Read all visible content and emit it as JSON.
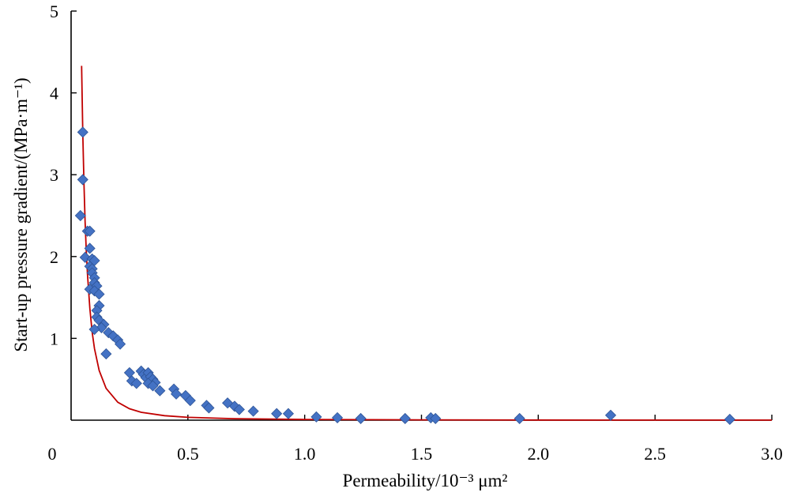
{
  "chart_data": {
    "type": "scatter",
    "title": "",
    "xlabel": "Permeability/10⁻³ μm²",
    "ylabel": "Start-up pressure gradient/(MPa·m⁻¹)",
    "xlim": [
      0,
      3.0
    ],
    "ylim": [
      0,
      5
    ],
    "x_ticks": [
      0,
      0.5,
      1.0,
      1.5,
      2.0,
      2.5,
      3.0
    ],
    "x_tick_labels": [
      "0",
      "0.5",
      "1.0",
      "1.5",
      "2.0",
      "2.5",
      "3.0"
    ],
    "y_ticks": [
      1,
      2,
      3,
      4,
      5
    ],
    "y_tick_labels": [
      "1",
      "2",
      "3",
      "4",
      "5"
    ],
    "grid": false,
    "legend": false,
    "colors": {
      "points": "#4472c4",
      "fit_line": "#c00000",
      "axes": "#000000"
    },
    "points": [
      {
        "x": 0.05,
        "y": 3.52
      },
      {
        "x": 0.05,
        "y": 2.94
      },
      {
        "x": 0.04,
        "y": 2.5
      },
      {
        "x": 0.07,
        "y": 2.31
      },
      {
        "x": 0.08,
        "y": 2.31
      },
      {
        "x": 0.08,
        "y": 2.1
      },
      {
        "x": 0.06,
        "y": 1.99
      },
      {
        "x": 0.09,
        "y": 1.97
      },
      {
        "x": 0.1,
        "y": 1.95
      },
      {
        "x": 0.08,
        "y": 1.88
      },
      {
        "x": 0.09,
        "y": 1.85
      },
      {
        "x": 0.09,
        "y": 1.8
      },
      {
        "x": 0.1,
        "y": 1.74
      },
      {
        "x": 0.1,
        "y": 1.68
      },
      {
        "x": 0.11,
        "y": 1.64
      },
      {
        "x": 0.08,
        "y": 1.6
      },
      {
        "x": 0.1,
        "y": 1.58
      },
      {
        "x": 0.12,
        "y": 1.54
      },
      {
        "x": 0.12,
        "y": 1.4
      },
      {
        "x": 0.11,
        "y": 1.34
      },
      {
        "x": 0.11,
        "y": 1.26
      },
      {
        "x": 0.12,
        "y": 1.22
      },
      {
        "x": 0.14,
        "y": 1.17
      },
      {
        "x": 0.13,
        "y": 1.13
      },
      {
        "x": 0.1,
        "y": 1.11
      },
      {
        "x": 0.16,
        "y": 1.07
      },
      {
        "x": 0.18,
        "y": 1.03
      },
      {
        "x": 0.2,
        "y": 0.98
      },
      {
        "x": 0.21,
        "y": 0.93
      },
      {
        "x": 0.15,
        "y": 0.81
      },
      {
        "x": 0.25,
        "y": 0.58
      },
      {
        "x": 0.26,
        "y": 0.48
      },
      {
        "x": 0.28,
        "y": 0.45
      },
      {
        "x": 0.3,
        "y": 0.6
      },
      {
        "x": 0.31,
        "y": 0.56
      },
      {
        "x": 0.32,
        "y": 0.52
      },
      {
        "x": 0.33,
        "y": 0.58
      },
      {
        "x": 0.34,
        "y": 0.53
      },
      {
        "x": 0.35,
        "y": 0.5
      },
      {
        "x": 0.36,
        "y": 0.46
      },
      {
        "x": 0.33,
        "y": 0.45
      },
      {
        "x": 0.35,
        "y": 0.42
      },
      {
        "x": 0.38,
        "y": 0.36
      },
      {
        "x": 0.44,
        "y": 0.38
      },
      {
        "x": 0.45,
        "y": 0.32
      },
      {
        "x": 0.49,
        "y": 0.3
      },
      {
        "x": 0.51,
        "y": 0.24
      },
      {
        "x": 0.58,
        "y": 0.18
      },
      {
        "x": 0.59,
        "y": 0.15
      },
      {
        "x": 0.67,
        "y": 0.21
      },
      {
        "x": 0.7,
        "y": 0.17
      },
      {
        "x": 0.72,
        "y": 0.13
      },
      {
        "x": 0.78,
        "y": 0.11
      },
      {
        "x": 0.88,
        "y": 0.08
      },
      {
        "x": 0.93,
        "y": 0.08
      },
      {
        "x": 1.05,
        "y": 0.04
      },
      {
        "x": 1.14,
        "y": 0.03
      },
      {
        "x": 1.24,
        "y": 0.02
      },
      {
        "x": 1.43,
        "y": 0.02
      },
      {
        "x": 1.54,
        "y": 0.03
      },
      {
        "x": 1.56,
        "y": 0.02
      },
      {
        "x": 1.92,
        "y": 0.02
      },
      {
        "x": 2.31,
        "y": 0.06
      },
      {
        "x": 2.82,
        "y": 0.01
      }
    ],
    "fit_curve": {
      "x": [
        0.045,
        0.05,
        0.055,
        0.06,
        0.065,
        0.07,
        0.08,
        0.09,
        0.1,
        0.12,
        0.15,
        0.2,
        0.25,
        0.3,
        0.4,
        0.5,
        0.7,
        1.0,
        1.5,
        2.0,
        2.5,
        3.0
      ],
      "y": [
        4.33,
        3.5,
        2.89,
        2.43,
        2.07,
        1.79,
        1.37,
        1.08,
        0.875,
        0.608,
        0.389,
        0.219,
        0.14,
        0.097,
        0.055,
        0.035,
        0.018,
        0.0088,
        0.0039,
        0.0022,
        0.0014,
        0.001
      ]
    }
  }
}
